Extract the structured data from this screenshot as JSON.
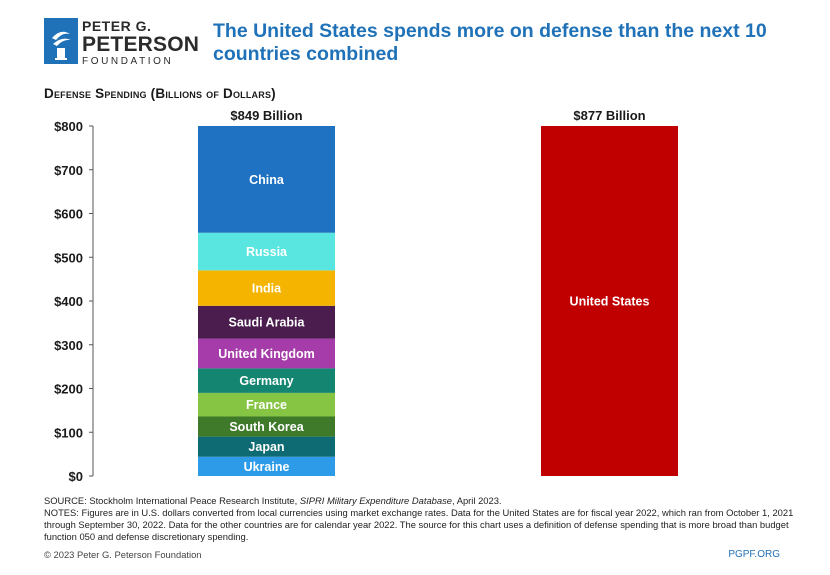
{
  "brand": {
    "line1": "PETER G.",
    "line2": "PETERSON",
    "line3": "FOUNDATION",
    "color": "#1f72b8"
  },
  "title": "The United States spends more on defense than the next 10 countries combined",
  "subtitle": "Defense Spending (Billions of Dollars)",
  "chart_data": {
    "type": "bar",
    "stacked": true,
    "ylim": [
      0,
      800
    ],
    "yticks": [
      0,
      100,
      200,
      300,
      400,
      500,
      600,
      700,
      800
    ],
    "ytick_labels": [
      "$0",
      "$100",
      "$200",
      "$300",
      "$400",
      "$500",
      "$600",
      "$700",
      "$800"
    ],
    "bars": [
      {
        "total_label": "$849 Billion",
        "segments": [
          {
            "name": "Ukraine",
            "value": 44,
            "color": "#2e9be8"
          },
          {
            "name": "Japan",
            "value": 46,
            "color": "#0f6b73"
          },
          {
            "name": "South Korea",
            "value": 46,
            "color": "#3f7a2a"
          },
          {
            "name": "France",
            "value": 54,
            "color": "#86c443"
          },
          {
            "name": "Germany",
            "value": 56,
            "color": "#138571"
          },
          {
            "name": "United Kingdom",
            "value": 68,
            "color": "#a63ca9"
          },
          {
            "name": "Saudi Arabia",
            "value": 75,
            "color": "#4a1d4e"
          },
          {
            "name": "India",
            "value": 81,
            "color": "#f5b400"
          },
          {
            "name": "Russia",
            "value": 86,
            "color": "#5ae6e0"
          },
          {
            "name": "China",
            "value": 292,
            "color": "#1f72c1"
          }
        ]
      },
      {
        "total_label": "$877 Billion",
        "segments": [
          {
            "name": "United States",
            "value": 877,
            "color": "#c00000"
          }
        ]
      }
    ]
  },
  "notes": {
    "source_prefix": "SOURCE: Stockholm International Peace Research Institute, ",
    "source_title": "SIPRI Military Expenditure Database",
    "source_suffix": ", April 2023.",
    "text": "NOTES: Figures are in U.S. dollars converted from local currencies using market exchange rates. Data for the United States are for fiscal year 2022, which ran from October 1, 2021 through September 30, 2022. Data for the other countries are for calendar year 2022. The source for this chart uses a definition of defense spending that is more broad than budget function 050 and defense discretionary spending."
  },
  "copyright": "© 2023 Peter G. Peterson Foundation",
  "site": "PGPF.ORG"
}
